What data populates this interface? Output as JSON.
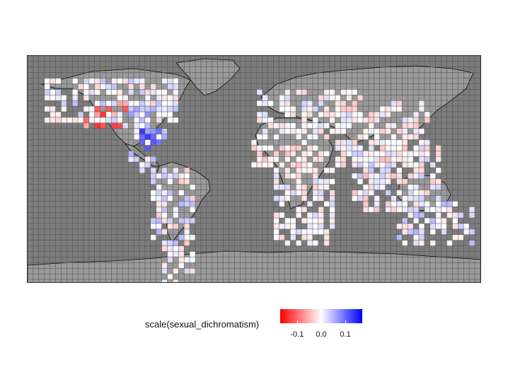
{
  "legend": {
    "title": "scale(sexual_dichromatism)",
    "ticks": [
      {
        "label": "-0.1",
        "value": -0.1
      },
      {
        "label": "0.0",
        "value": 0.0
      },
      {
        "label": "0.1",
        "value": 0.1
      }
    ],
    "range": [
      -0.17,
      0.17
    ],
    "low_color": "#ff0000",
    "mid_color": "#ffffff",
    "high_color": "#0000ff"
  },
  "colors": {
    "ocean_cell": "#7d7d7d",
    "land_no_data": "#9a9a9a",
    "grid_line": "#4a4a4a",
    "coastline": "#000000"
  }
}
